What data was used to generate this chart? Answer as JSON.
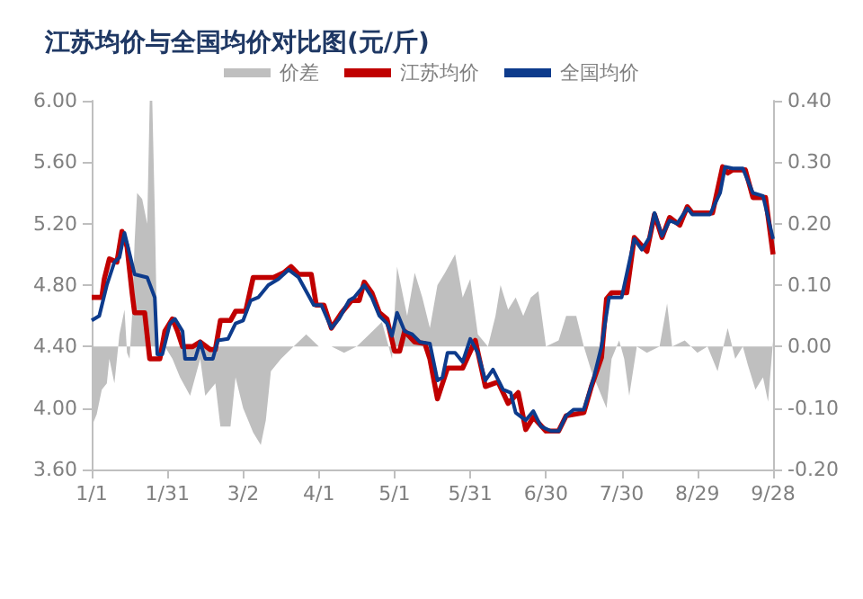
{
  "chart_data": {
    "type": "line",
    "title": "江苏均价与全国均价对比图(元/斤)",
    "legend": "top",
    "grid": false,
    "xlim": [
      "--01-01",
      "--09-28"
    ],
    "xticks": [
      {
        "value": "--01-01",
        "label": "1/1"
      },
      {
        "value": "--01-31",
        "label": "1/31"
      },
      {
        "value": "--03-02",
        "label": "3/2"
      },
      {
        "value": "--04-01",
        "label": "4/1"
      },
      {
        "value": "--05-01",
        "label": "5/1"
      },
      {
        "value": "--05-31",
        "label": "5/31"
      },
      {
        "value": "--06-30",
        "label": "6/30"
      },
      {
        "value": "--07-30",
        "label": "7/30"
      },
      {
        "value": "--08-29",
        "label": "8/29"
      },
      {
        "value": "--09-28",
        "label": "9/28"
      }
    ],
    "ylim": [
      3.6,
      6.0
    ],
    "yticks": [
      {
        "value": 3.6,
        "label": "3.60"
      },
      {
        "value": 4.0,
        "label": "4.00"
      },
      {
        "value": 4.4,
        "label": "4.40"
      },
      {
        "value": 4.8,
        "label": "4.80"
      },
      {
        "value": 5.2,
        "label": "5.20"
      },
      {
        "value": 5.6,
        "label": "5.60"
      },
      {
        "value": 6.0,
        "label": "6.00"
      }
    ],
    "y2lim": [
      -0.2,
      0.4
    ],
    "y2ticks": [
      {
        "value": -0.2,
        "label": "-0.20"
      },
      {
        "value": -0.1,
        "label": "-0.10"
      },
      {
        "value": 0,
        "label": "0.00"
      },
      {
        "value": 0.1,
        "label": "0.10"
      },
      {
        "value": 0.2,
        "label": "0.20"
      },
      {
        "value": 0.3,
        "label": "0.30"
      },
      {
        "value": 0.4,
        "label": "0.40"
      }
    ],
    "series": [
      {
        "name": "价差",
        "type": "area",
        "axis": "y2",
        "color": "#bfbfbf",
        "x": [
          "--01-01",
          "--01-03",
          "--01-05",
          "--01-07",
          "--01-08",
          "--01-10",
          "--01-12",
          "--01-14",
          "--01-15",
          "--01-16",
          "--01-17",
          "--01-18",
          "--01-19",
          "--01-21",
          "--01-23",
          "--01-24",
          "--01-25",
          "--01-26",
          "--01-27",
          "--01-30",
          "--02-02",
          "--02-05",
          "--02-09",
          "--02-13",
          "--02-15",
          "--02-19",
          "--02-21",
          "--02-25",
          "--02-27",
          "--03-02",
          "--03-06",
          "--03-09",
          "--03-11",
          "--03-13",
          "--03-17",
          "--03-22",
          "--03-27",
          "--04-01",
          "--04-06",
          "--04-11",
          "--04-16",
          "--04-21",
          "--04-26",
          "--04-30",
          "--05-02",
          "--05-06",
          "--05-09",
          "--05-12",
          "--05-15",
          "--05-18",
          "--05-21",
          "--05-25",
          "--05-28",
          "--05-31",
          "--06-03",
          "--06-07",
          "--06-10",
          "--06-12",
          "--06-15",
          "--06-18",
          "--06-21",
          "--06-24",
          "--06-27",
          "--06-30",
          "--07-05",
          "--07-08",
          "--07-12",
          "--07-15",
          "--07-18",
          "--07-21",
          "--07-24",
          "--07-26",
          "--07-29",
          "--07-31",
          "--08-02",
          "--08-05",
          "--08-09",
          "--08-14",
          "--08-17",
          "--08-19",
          "--08-24",
          "--08-29",
          "--09-02",
          "--09-06",
          "--09-10",
          "--09-13",
          "--09-16",
          "--09-18",
          "--09-21",
          "--09-24",
          "--09-26",
          "--09-28"
        ],
        "values": [
          -0.13,
          -0.11,
          -0.07,
          -0.06,
          -0.02,
          -0.06,
          0.02,
          0.06,
          -0.01,
          -0.02,
          0.05,
          0.17,
          0.25,
          0.24,
          0.2,
          0.4,
          0.4,
          0.22,
          0,
          0,
          -0.02,
          -0.05,
          -0.08,
          -0.02,
          -0.08,
          -0.06,
          -0.13,
          -0.13,
          -0.05,
          -0.1,
          -0.14,
          -0.16,
          -0.12,
          -0.04,
          -0.02,
          0,
          0.02,
          0,
          0,
          -0.01,
          0,
          0.02,
          0.04,
          -0.02,
          0.13,
          0.05,
          0.12,
          0.08,
          0.03,
          0.1,
          0.12,
          0.15,
          0.08,
          0.11,
          0.02,
          0,
          0.05,
          0.1,
          0.06,
          0.08,
          0.05,
          0.08,
          0.09,
          0,
          0.01,
          0.05,
          0.05,
          0,
          -0.04,
          -0.07,
          -0.1,
          -0.02,
          0.01,
          -0.02,
          -0.08,
          0,
          -0.01,
          0,
          0.07,
          0,
          0.01,
          -0.01,
          0,
          -0.04,
          0.03,
          -0.02,
          0,
          -0.03,
          -0.07,
          -0.05,
          -0.09,
          0.01
        ]
      },
      {
        "name": "江苏均价",
        "color": "#c00000",
        "x": [
          "--01-01",
          "--01-05",
          "--01-06",
          "--01-08",
          "--01-11",
          "--01-13",
          "--01-15",
          "--01-17",
          "--01-18",
          "--01-22",
          "--01-24",
          "--01-28",
          "--01-30",
          "--02-02",
          "--02-04",
          "--02-06",
          "--02-10",
          "--02-13",
          "--02-17",
          "--02-19",
          "--02-21",
          "--02-25",
          "--02-27",
          "--03-03",
          "--03-06",
          "--03-14",
          "--03-18",
          "--03-21",
          "--03-24",
          "--03-29",
          "--03-31",
          "--04-03",
          "--04-06",
          "--04-10",
          "--04-14",
          "--04-17",
          "--04-19",
          "--04-22",
          "--04-25",
          "--04-28",
          "--05-01",
          "--05-03",
          "--05-05",
          "--05-09",
          "--05-13",
          "--05-15",
          "--05-18",
          "--05-22",
          "--05-28",
          "--06-02",
          "--06-06",
          "--06-11",
          "--06-15",
          "--06-19",
          "--06-22",
          "--06-25",
          "--06-30",
          "--07-05",
          "--07-08",
          "--07-15",
          "--07-18",
          "--07-22",
          "--07-24",
          "--07-26",
          "--08-01",
          "--08-04",
          "--08-09",
          "--08-12",
          "--08-15",
          "--08-18",
          "--08-22",
          "--08-25",
          "--08-27",
          "--09-04",
          "--09-08",
          "--09-10",
          "--09-12",
          "--09-17",
          "--09-20",
          "--09-25",
          "--09-28"
        ],
        "values": [
          4.72,
          4.72,
          4.84,
          4.97,
          4.95,
          5.15,
          5.05,
          4.75,
          4.62,
          4.62,
          4.32,
          4.32,
          4.5,
          4.58,
          4.5,
          4.4,
          4.4,
          4.43,
          4.38,
          4.38,
          4.57,
          4.57,
          4.63,
          4.63,
          4.85,
          4.85,
          4.88,
          4.92,
          4.87,
          4.87,
          4.67,
          4.67,
          4.52,
          4.62,
          4.7,
          4.7,
          4.82,
          4.75,
          4.62,
          4.58,
          4.37,
          4.37,
          4.5,
          4.43,
          4.42,
          4.32,
          4.06,
          4.26,
          4.26,
          4.44,
          4.14,
          4.17,
          4.03,
          4.1,
          3.86,
          3.94,
          3.85,
          3.85,
          3.95,
          3.97,
          4.14,
          4.33,
          4.71,
          4.75,
          4.75,
          5.11,
          5.02,
          5.26,
          5.11,
          5.24,
          5.19,
          5.31,
          5.27,
          5.27,
          5.57,
          5.53,
          5.55,
          5.55,
          5.37,
          5.37,
          5.0
        ]
      },
      {
        "name": "全国均价",
        "color": "#0d3b8c",
        "x": [
          "--01-01",
          "--01-04",
          "--01-07",
          "--01-10",
          "--01-12",
          "--01-14",
          "--01-18",
          "--01-23",
          "--01-26",
          "--01-27",
          "--01-29",
          "--02-01",
          "--02-03",
          "--02-06",
          "--02-07",
          "--02-11",
          "--02-13",
          "--02-15",
          "--02-18",
          "--02-20",
          "--02-24",
          "--02-27",
          "--03-02",
          "--03-05",
          "--03-08",
          "--03-12",
          "--03-16",
          "--03-20",
          "--03-24",
          "--03-30",
          "--04-02",
          "--04-06",
          "--04-09",
          "--04-13",
          "--04-15",
          "--04-19",
          "--04-22",
          "--04-25",
          "--04-28",
          "--04-30",
          "--05-02",
          "--05-05",
          "--05-08",
          "--05-11",
          "--05-15",
          "--05-18",
          "--05-20",
          "--05-22",
          "--05-25",
          "--05-28",
          "--05-31",
          "--06-03",
          "--06-06",
          "--06-09",
          "--06-13",
          "--06-16",
          "--06-18",
          "--06-22",
          "--06-25",
          "--06-28",
          "--07-02",
          "--07-05",
          "--07-08",
          "--07-11",
          "--07-15",
          "--07-19",
          "--07-22",
          "--07-25",
          "--07-30",
          "--08-04",
          "--08-07",
          "--08-10",
          "--08-12",
          "--08-15",
          "--08-18",
          "--08-21",
          "--08-25",
          "--08-27",
          "--09-03",
          "--09-07",
          "--09-09",
          "--09-12",
          "--09-16",
          "--09-20",
          "--09-24",
          "--09-28"
        ],
        "values": [
          4.57,
          4.6,
          4.8,
          4.95,
          4.98,
          5.14,
          4.87,
          4.85,
          4.72,
          4.35,
          4.35,
          4.55,
          4.58,
          4.5,
          4.32,
          4.32,
          4.43,
          4.32,
          4.32,
          4.44,
          4.45,
          4.55,
          4.57,
          4.7,
          4.72,
          4.8,
          4.84,
          4.9,
          4.85,
          4.67,
          4.67,
          4.52,
          4.58,
          4.7,
          4.72,
          4.8,
          4.72,
          4.6,
          4.55,
          4.47,
          4.62,
          4.5,
          4.48,
          4.43,
          4.42,
          4.18,
          4.2,
          4.36,
          4.36,
          4.3,
          4.45,
          4.36,
          4.18,
          4.25,
          4.12,
          4.1,
          3.97,
          3.92,
          3.98,
          3.88,
          3.85,
          3.85,
          3.95,
          3.99,
          3.99,
          4.2,
          4.4,
          4.72,
          4.72,
          5.1,
          5.03,
          5.11,
          5.27,
          5.12,
          5.22,
          5.2,
          5.3,
          5.26,
          5.26,
          5.4,
          5.57,
          5.56,
          5.56,
          5.4,
          5.38,
          5.1
        ]
      }
    ]
  }
}
